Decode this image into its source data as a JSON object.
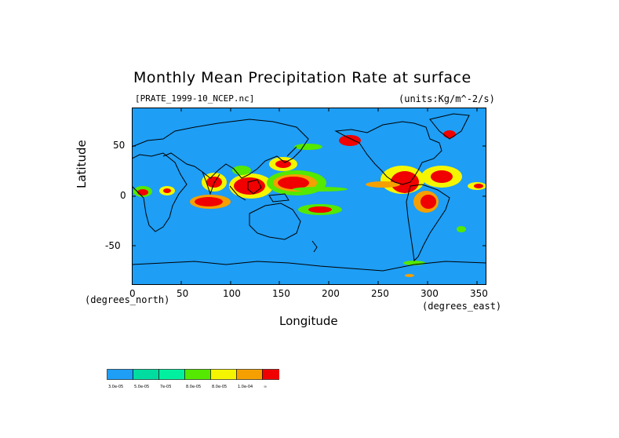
{
  "title": "Monthly Mean Precipitation Rate at surface",
  "file_label": "[PRATE_1999-10_NCEP.nc]",
  "units_label": "(units:Kg/m^-2/s)",
  "axes": {
    "ylabel": "Latitude",
    "xlabel": "Longitude",
    "y_unit": "(degrees_north)",
    "x_unit": "(degrees_east)",
    "y_ticks": [
      "50",
      "0",
      "-50"
    ],
    "x_ticks": [
      "0",
      "50",
      "100",
      "150",
      "200",
      "250",
      "300",
      "350"
    ]
  },
  "map_data": {
    "x_range": [
      0,
      360
    ],
    "y_range": [
      -90,
      90
    ],
    "ocean_color": "#1e9ef5",
    "level_colors": [
      "#1e9ef5",
      "#00dca0",
      "#00f0a0",
      "#55e800",
      "#f5f500",
      "#f5a000",
      "#f00000"
    ]
  },
  "colorbar": {
    "colors": [
      "#1e9ef5",
      "#00dca0",
      "#00f0a0",
      "#55e800",
      "#f5f500",
      "#f5a000",
      "#f00000"
    ],
    "labels": [
      "3.0e-05",
      "5.0e-05",
      "7e-05",
      "8.0e-05",
      "8.0e-05",
      "1.0e-04",
      "∞"
    ]
  }
}
